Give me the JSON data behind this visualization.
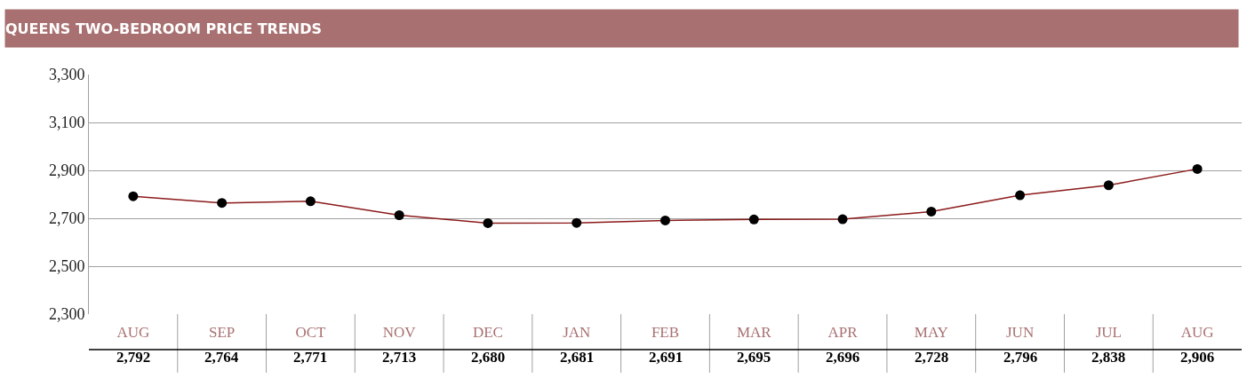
{
  "chart_data": {
    "type": "line",
    "title": "QUEENS TWO-BEDROOM PRICE TRENDS",
    "categories": [
      "AUG",
      "SEP",
      "OCT",
      "NOV",
      "DEC",
      "JAN",
      "FEB",
      "MAR",
      "APR",
      "MAY",
      "JUN",
      "JUL",
      "AUG"
    ],
    "series": [
      {
        "color": "#8b1a1a",
        "values": [
          2792,
          2764,
          2771,
          2713,
          2680,
          2681,
          2691,
          2695,
          2696,
          2728,
          2796,
          2838,
          2906
        ]
      }
    ],
    "value_labels": [
      "2,792",
      "2,764",
      "2,771",
      "2,713",
      "2,680",
      "2,681",
      "2,691",
      "2,695",
      "2,696",
      "2,728",
      "2,796",
      "2,838",
      "2,906"
    ],
    "ylim": [
      2300,
      3300
    ],
    "yticks": [
      {
        "value": 2300,
        "label": "2,300"
      },
      {
        "value": 2500,
        "label": "2,500"
      },
      {
        "value": 2700,
        "label": "2,700"
      },
      {
        "value": 2900,
        "label": "2,900"
      },
      {
        "value": 3100,
        "label": "3,100"
      },
      {
        "value": 3300,
        "label": "3,300"
      }
    ],
    "grid": "y",
    "marker": "circle",
    "line_style": "solid",
    "legend": false
  }
}
